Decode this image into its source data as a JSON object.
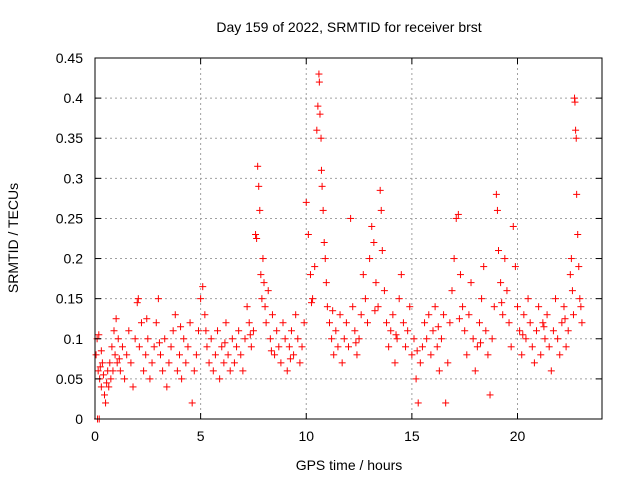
{
  "chart_data": {
    "type": "scatter",
    "title": "Day 159 of 2022, SRMTID for receiver brst",
    "xlabel": "GPS time / hours",
    "ylabel": "SRMTID / TECUs",
    "xlim": [
      0,
      24
    ],
    "ylim": [
      0,
      0.45
    ],
    "xticks": [
      0,
      5,
      10,
      15,
      20
    ],
    "xtick_labels": [
      "0",
      "5",
      "10",
      "15",
      "20"
    ],
    "yticks": [
      0,
      0.05,
      0.1,
      0.15,
      0.2,
      0.25,
      0.3,
      0.35,
      0.4,
      0.45
    ],
    "ytick_labels": [
      "0",
      "0.05",
      "0.1",
      "0.15",
      "0.2",
      "0.25",
      "0.3",
      "0.35",
      "0.4",
      "0.45"
    ],
    "grid": true,
    "marker": "+",
    "color": "#ff0000",
    "series": [
      {
        "name": "brst",
        "points": [
          [
            0.05,
            0.08
          ],
          [
            0.1,
            0.1
          ],
          [
            0.12,
            0.0
          ],
          [
            0.15,
            0.06
          ],
          [
            0.18,
            0.105
          ],
          [
            0.2,
            0.0
          ],
          [
            0.22,
            0.05
          ],
          [
            0.25,
            0.065
          ],
          [
            0.3,
            0.04
          ],
          [
            0.35,
            0.07
          ],
          [
            0.4,
            0.055
          ],
          [
            0.45,
            0.03
          ],
          [
            0.5,
            0.02
          ],
          [
            0.55,
            0.045
          ],
          [
            0.6,
            0.06
          ],
          [
            0.65,
            0.04
          ],
          [
            0.7,
            0.07
          ],
          [
            0.75,
            0.05
          ],
          [
            0.8,
            0.09
          ],
          [
            0.85,
            0.06
          ],
          [
            0.9,
            0.11
          ],
          [
            0.95,
            0.08
          ],
          [
            1.0,
            0.125
          ],
          [
            1.05,
            0.07
          ],
          [
            1.1,
            0.1
          ],
          [
            1.2,
            0.06
          ],
          [
            1.3,
            0.09
          ],
          [
            1.4,
            0.05
          ],
          [
            1.5,
            0.08
          ],
          [
            1.6,
            0.11
          ],
          [
            1.7,
            0.07
          ],
          [
            1.8,
            0.04
          ],
          [
            1.9,
            0.1
          ],
          [
            2.0,
            0.145
          ],
          [
            2.05,
            0.15
          ],
          [
            2.1,
            0.09
          ],
          [
            2.2,
            0.12
          ],
          [
            2.3,
            0.06
          ],
          [
            2.4,
            0.08
          ],
          [
            2.5,
            0.1
          ],
          [
            2.6,
            0.05
          ],
          [
            2.7,
            0.07
          ],
          [
            2.8,
            0.09
          ],
          [
            2.9,
            0.12
          ],
          [
            3.0,
            0.15
          ],
          [
            3.1,
            0.08
          ],
          [
            3.2,
            0.06
          ],
          [
            3.3,
            0.1
          ],
          [
            3.4,
            0.04
          ],
          [
            3.5,
            0.07
          ],
          [
            3.6,
            0.09
          ],
          [
            3.7,
            0.11
          ],
          [
            3.8,
            0.13
          ],
          [
            3.9,
            0.06
          ],
          [
            4.0,
            0.08
          ],
          [
            4.1,
            0.05
          ],
          [
            4.2,
            0.1
          ],
          [
            4.3,
            0.07
          ],
          [
            4.4,
            0.09
          ],
          [
            4.5,
            0.12
          ],
          [
            4.6,
            0.02
          ],
          [
            4.7,
            0.06
          ],
          [
            4.8,
            0.08
          ],
          [
            4.9,
            0.11
          ],
          [
            5.0,
            0.15
          ],
          [
            5.1,
            0.165
          ],
          [
            5.2,
            0.13
          ],
          [
            5.3,
            0.09
          ],
          [
            5.4,
            0.07
          ],
          [
            5.5,
            0.1
          ],
          [
            5.6,
            0.06
          ],
          [
            5.7,
            0.08
          ],
          [
            5.8,
            0.11
          ],
          [
            5.9,
            0.05
          ],
          [
            6.0,
            0.09
          ],
          [
            6.1,
            0.07
          ],
          [
            6.2,
            0.12
          ],
          [
            6.3,
            0.08
          ],
          [
            6.4,
            0.06
          ],
          [
            6.5,
            0.1
          ],
          [
            6.6,
            0.07
          ],
          [
            6.7,
            0.09
          ],
          [
            6.8,
            0.11
          ],
          [
            6.9,
            0.08
          ],
          [
            7.0,
            0.06
          ],
          [
            7.1,
            0.1
          ],
          [
            7.2,
            0.14
          ],
          [
            7.3,
            0.12
          ],
          [
            7.4,
            0.09
          ],
          [
            7.5,
            0.11
          ],
          [
            7.6,
            0.23
          ],
          [
            7.65,
            0.225
          ],
          [
            7.7,
            0.315
          ],
          [
            7.75,
            0.29
          ],
          [
            7.8,
            0.26
          ],
          [
            7.85,
            0.18
          ],
          [
            7.9,
            0.15
          ],
          [
            7.95,
            0.2
          ],
          [
            8.0,
            0.17
          ],
          [
            8.05,
            0.14
          ],
          [
            8.1,
            0.12
          ],
          [
            8.2,
            0.16
          ],
          [
            8.3,
            0.1
          ],
          [
            8.4,
            0.13
          ],
          [
            8.5,
            0.08
          ],
          [
            8.6,
            0.11
          ],
          [
            8.7,
            0.09
          ],
          [
            8.8,
            0.07
          ],
          [
            8.9,
            0.12
          ],
          [
            9.0,
            0.1
          ],
          [
            9.1,
            0.06
          ],
          [
            9.2,
            0.09
          ],
          [
            9.3,
            0.11
          ],
          [
            9.4,
            0.08
          ],
          [
            9.5,
            0.13
          ],
          [
            9.6,
            0.1
          ],
          [
            9.7,
            0.07
          ],
          [
            9.8,
            0.09
          ],
          [
            9.9,
            0.12
          ],
          [
            10.0,
            0.27
          ],
          [
            10.1,
            0.23
          ],
          [
            10.2,
            0.18
          ],
          [
            10.3,
            0.15
          ],
          [
            10.4,
            0.19
          ],
          [
            10.5,
            0.36
          ],
          [
            10.55,
            0.39
          ],
          [
            10.6,
            0.43
          ],
          [
            10.62,
            0.42
          ],
          [
            10.65,
            0.38
          ],
          [
            10.7,
            0.35
          ],
          [
            10.72,
            0.31
          ],
          [
            10.75,
            0.29
          ],
          [
            10.8,
            0.26
          ],
          [
            10.85,
            0.22
          ],
          [
            10.9,
            0.2
          ],
          [
            10.95,
            0.17
          ],
          [
            11.0,
            0.14
          ],
          [
            11.1,
            0.12
          ],
          [
            11.2,
            0.1
          ],
          [
            11.3,
            0.08
          ],
          [
            11.4,
            0.11
          ],
          [
            11.5,
            0.09
          ],
          [
            11.6,
            0.13
          ],
          [
            11.7,
            0.07
          ],
          [
            11.8,
            0.1
          ],
          [
            11.9,
            0.12
          ],
          [
            12.0,
            0.09
          ],
          [
            12.1,
            0.25
          ],
          [
            12.2,
            0.14
          ],
          [
            12.3,
            0.11
          ],
          [
            12.4,
            0.08
          ],
          [
            12.5,
            0.1
          ],
          [
            12.6,
            0.13
          ],
          [
            12.7,
            0.18
          ],
          [
            12.8,
            0.15
          ],
          [
            12.9,
            0.12
          ],
          [
            13.0,
            0.2
          ],
          [
            13.1,
            0.24
          ],
          [
            13.2,
            0.22
          ],
          [
            13.3,
            0.17
          ],
          [
            13.4,
            0.14
          ],
          [
            13.5,
            0.285
          ],
          [
            13.55,
            0.26
          ],
          [
            13.6,
            0.21
          ],
          [
            13.7,
            0.16
          ],
          [
            13.8,
            0.12
          ],
          [
            13.9,
            0.09
          ],
          [
            14.0,
            0.11
          ],
          [
            14.1,
            0.13
          ],
          [
            14.2,
            0.07
          ],
          [
            14.3,
            0.1
          ],
          [
            14.4,
            0.15
          ],
          [
            14.5,
            0.18
          ],
          [
            14.6,
            0.12
          ],
          [
            14.7,
            0.09
          ],
          [
            14.8,
            0.11
          ],
          [
            14.9,
            0.14
          ],
          [
            15.0,
            0.08
          ],
          [
            15.1,
            0.1
          ],
          [
            15.2,
            0.05
          ],
          [
            15.3,
            0.02
          ],
          [
            15.4,
            0.07
          ],
          [
            15.5,
            0.09
          ],
          [
            15.6,
            0.12
          ],
          [
            15.7,
            0.1
          ],
          [
            15.8,
            0.13
          ],
          [
            15.9,
            0.08
          ],
          [
            16.0,
            0.11
          ],
          [
            16.1,
            0.14
          ],
          [
            16.2,
            0.09
          ],
          [
            16.3,
            0.06
          ],
          [
            16.4,
            0.1
          ],
          [
            16.5,
            0.13
          ],
          [
            16.6,
            0.02
          ],
          [
            16.7,
            0.07
          ],
          [
            16.8,
            0.12
          ],
          [
            16.9,
            0.16
          ],
          [
            17.0,
            0.2
          ],
          [
            17.1,
            0.25
          ],
          [
            17.2,
            0.255
          ],
          [
            17.3,
            0.18
          ],
          [
            17.4,
            0.14
          ],
          [
            17.5,
            0.11
          ],
          [
            17.6,
            0.08
          ],
          [
            17.7,
            0.13
          ],
          [
            17.8,
            0.17
          ],
          [
            17.9,
            0.1
          ],
          [
            18.0,
            0.06
          ],
          [
            18.1,
            0.09
          ],
          [
            18.2,
            0.12
          ],
          [
            18.3,
            0.15
          ],
          [
            18.4,
            0.19
          ],
          [
            18.5,
            0.11
          ],
          [
            18.6,
            0.08
          ],
          [
            18.7,
            0.03
          ],
          [
            18.8,
            0.1
          ],
          [
            18.9,
            0.14
          ],
          [
            19.0,
            0.28
          ],
          [
            19.05,
            0.26
          ],
          [
            19.1,
            0.21
          ],
          [
            19.2,
            0.17
          ],
          [
            19.3,
            0.13
          ],
          [
            19.4,
            0.2
          ],
          [
            19.5,
            0.16
          ],
          [
            19.6,
            0.12
          ],
          [
            19.7,
            0.09
          ],
          [
            19.8,
            0.24
          ],
          [
            19.9,
            0.19
          ],
          [
            20.0,
            0.14
          ],
          [
            20.1,
            0.11
          ],
          [
            20.2,
            0.08
          ],
          [
            20.3,
            0.13
          ],
          [
            20.4,
            0.1
          ],
          [
            20.5,
            0.15
          ],
          [
            20.6,
            0.12
          ],
          [
            20.7,
            0.09
          ],
          [
            20.8,
            0.07
          ],
          [
            20.9,
            0.11
          ],
          [
            21.0,
            0.14
          ],
          [
            21.1,
            0.08
          ],
          [
            21.2,
            0.12
          ],
          [
            21.3,
            0.1
          ],
          [
            21.4,
            0.13
          ],
          [
            21.5,
            0.09
          ],
          [
            21.6,
            0.06
          ],
          [
            21.7,
            0.11
          ],
          [
            21.8,
            0.15
          ],
          [
            21.9,
            0.1
          ],
          [
            22.0,
            0.08
          ],
          [
            22.1,
            0.12
          ],
          [
            22.2,
            0.14
          ],
          [
            22.3,
            0.09
          ],
          [
            22.4,
            0.11
          ],
          [
            22.5,
            0.18
          ],
          [
            22.55,
            0.2
          ],
          [
            22.6,
            0.16
          ],
          [
            22.65,
            0.13
          ],
          [
            22.7,
            0.4
          ],
          [
            22.72,
            0.395
          ],
          [
            22.75,
            0.36
          ],
          [
            22.78,
            0.35
          ],
          [
            22.8,
            0.28
          ],
          [
            22.85,
            0.23
          ],
          [
            22.9,
            0.19
          ],
          [
            22.95,
            0.15
          ],
          [
            23.0,
            0.14
          ],
          [
            23.05,
            0.12
          ],
          [
            0.3,
            0.085
          ],
          [
            1.15,
            0.075
          ],
          [
            2.45,
            0.125
          ],
          [
            3.05,
            0.095
          ],
          [
            4.05,
            0.115
          ],
          [
            5.25,
            0.11
          ],
          [
            6.15,
            0.095
          ],
          [
            7.35,
            0.105
          ],
          [
            8.35,
            0.085
          ],
          [
            9.25,
            0.075
          ],
          [
            11.25,
            0.135
          ],
          [
            12.35,
            0.095
          ],
          [
            13.25,
            0.135
          ],
          [
            14.25,
            0.105
          ],
          [
            15.25,
            0.085
          ],
          [
            16.25,
            0.115
          ],
          [
            17.25,
            0.125
          ],
          [
            18.25,
            0.095
          ],
          [
            19.25,
            0.145
          ],
          [
            20.25,
            0.105
          ],
          [
            21.25,
            0.115
          ],
          [
            22.25,
            0.125
          ],
          [
            10.25,
            0.145
          ]
        ]
      }
    ]
  }
}
